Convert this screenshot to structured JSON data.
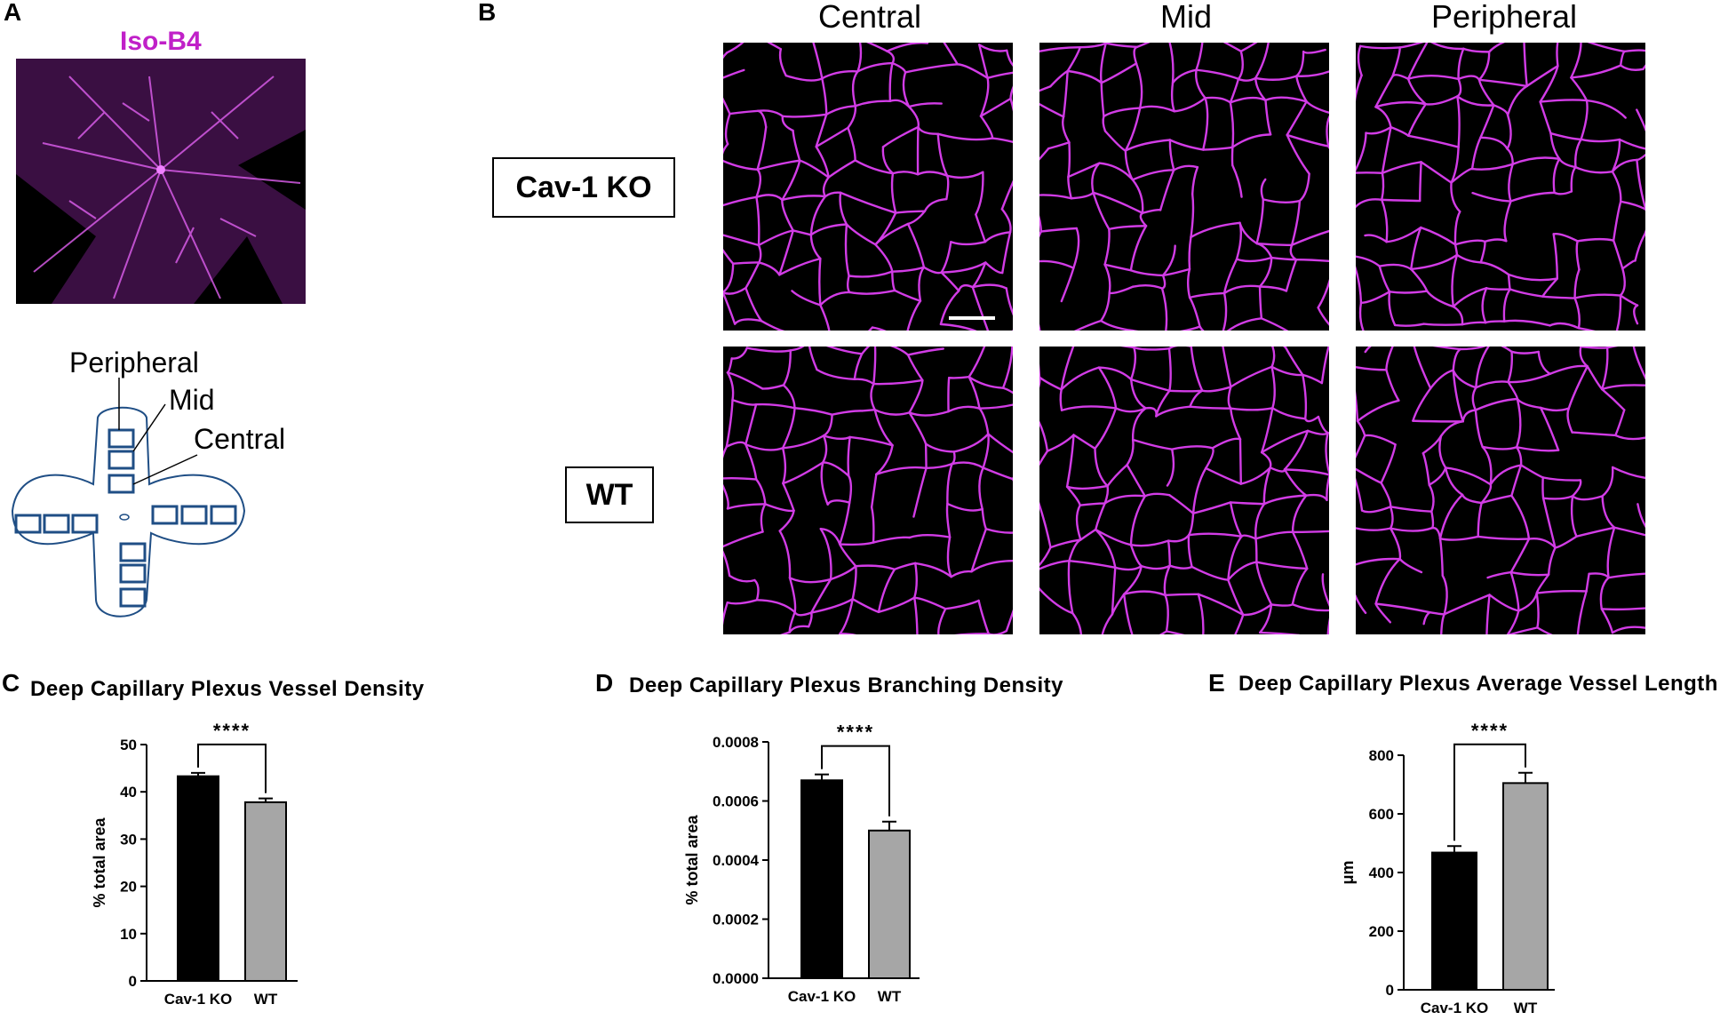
{
  "panels": {
    "a": "A",
    "b": "B",
    "c": "C",
    "d": "D",
    "e": "E"
  },
  "panel_a": {
    "stain_label": "Iso-B4",
    "schematic_labels": [
      "Peripheral",
      "Mid",
      "Central"
    ],
    "colors": {
      "stain": "#c020c8",
      "schematic": "#1f4e85"
    }
  },
  "panel_b": {
    "columns": [
      "Central",
      "Mid",
      "Peripheral"
    ],
    "rows": [
      "Cav-1 KO",
      "WT"
    ],
    "colors": {
      "vessel": "#d23ce6",
      "background": "#000000",
      "scale_bar": "#ffffff"
    }
  },
  "chart_data": [
    {
      "type": "bar",
      "title": "Deep Capillary Plexus Vessel Density",
      "categories": [
        "Cav-1 KO",
        "WT"
      ],
      "values": [
        43.3,
        37.8
      ],
      "errors": [
        0.7,
        0.8
      ],
      "bar_colors": [
        "#000000",
        "#a6a6a6"
      ],
      "ylabel": "% total area",
      "ylim": [
        0,
        50
      ],
      "yticks": [
        "0",
        "10",
        "20",
        "30",
        "40",
        "50"
      ],
      "significance": "****"
    },
    {
      "type": "bar",
      "title": "Deep Capillary Plexus Branching Density",
      "categories": [
        "Cav-1 KO",
        "WT"
      ],
      "values": [
        0.00067,
        0.0005
      ],
      "errors": [
        2e-05,
        3e-05
      ],
      "bar_colors": [
        "#000000",
        "#a6a6a6"
      ],
      "ylabel": "% total area",
      "ylim": [
        0,
        0.0008
      ],
      "yticks": [
        "0.0000",
        "0.0002",
        "0.0004",
        "0.0006",
        "0.0008"
      ],
      "significance": "****"
    },
    {
      "type": "bar",
      "title": "Deep Capillary Plexus Average Vessel Length",
      "categories": [
        "Cav-1 KO",
        "WT"
      ],
      "values": [
        468,
        705
      ],
      "errors": [
        22,
        35
      ],
      "bar_colors": [
        "#000000",
        "#a6a6a6"
      ],
      "ylabel": "μm",
      "ylim": [
        0,
        800
      ],
      "yticks": [
        "0",
        "200",
        "400",
        "600",
        "800"
      ],
      "significance": "****"
    }
  ]
}
